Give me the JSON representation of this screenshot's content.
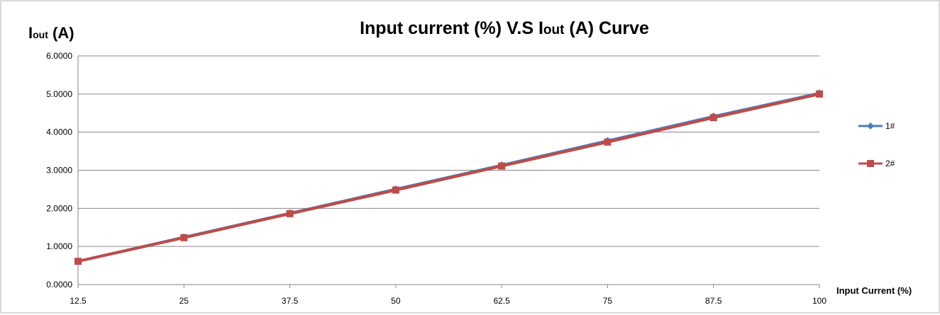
{
  "chart_data": {
    "type": "line",
    "title": "Input current (%) V.S Iout (A) Curve",
    "title_parts": {
      "pre": "Input current (%) V.S I",
      "sub": "out",
      "post": " (A) Curve"
    },
    "ylabel": "Iout (A)",
    "ylabel_parts": {
      "pre": "I",
      "sub": "out",
      "post": " (A)"
    },
    "xlabel": "Input Current (%)",
    "x": [
      12.5,
      25,
      37.5,
      50,
      62.5,
      75,
      87.5,
      100
    ],
    "x_tick_labels": [
      "12.5",
      "25",
      "37.5",
      "50",
      "62.5",
      "75",
      "87.5",
      "100"
    ],
    "ylim": [
      0,
      6
    ],
    "y_ticks": [
      0,
      1,
      2,
      3,
      4,
      5,
      6
    ],
    "y_tick_labels": [
      "0.0000",
      "1.0000",
      "2.0000",
      "3.0000",
      "4.0000",
      "5.0000",
      "6.0000"
    ],
    "grid": "horizontal",
    "legend_position": "right",
    "series": [
      {
        "name": "1#",
        "color": "#4a7ebb",
        "marker": "diamond",
        "values": [
          0.62,
          1.25,
          1.88,
          2.51,
          3.14,
          3.78,
          4.42,
          5.03
        ]
      },
      {
        "name": "2#",
        "color": "#be4b48",
        "marker": "square",
        "values": [
          0.61,
          1.23,
          1.86,
          2.48,
          3.11,
          3.74,
          4.38,
          5.0
        ]
      }
    ]
  }
}
